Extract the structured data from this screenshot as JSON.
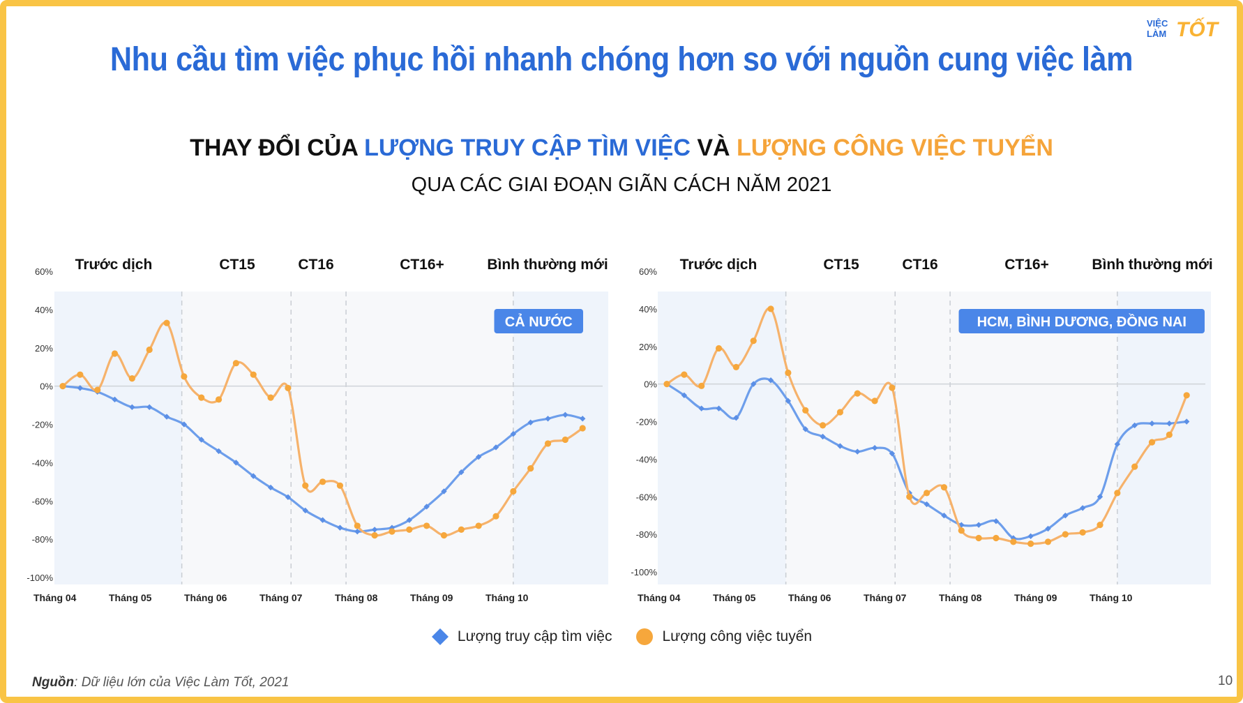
{
  "page_title": "Nhu cầu tìm việc phục hồi nhanh chóng hơn so với nguồn cung việc làm",
  "logo": {
    "top": "VIỆC",
    "bottom": "LÀM",
    "brand": "TỐT"
  },
  "chart_heading": {
    "part1": "THAY ĐỔI CỦA ",
    "part2": "LƯỢNG TRUY CẬP TÌM VIỆC",
    "part3": " VÀ ",
    "part4": "LƯỢNG CÔNG VIỆC TUYỂN",
    "subtitle": "QUA CÁC GIAI ĐOẠN GIÃN CÁCH NĂM 2021"
  },
  "legend": {
    "series1": "Lượng truy cập tìm việc",
    "series2": "Lượng công việc tuyển"
  },
  "source": {
    "label": "Nguồn",
    "text": ": Dữ liệu lớn của Việc Làm Tốt, 2021"
  },
  "page_number": "10",
  "colors": {
    "blue": "#6d9eeb",
    "orange": "#f6b26b",
    "accent_blue": "#2a6ad6",
    "border": "#f9c445"
  },
  "chart_data": [
    {
      "type": "line",
      "badge": "CẢ NƯỚC",
      "phases": [
        "Trước dịch",
        "CT15",
        "CT16",
        "CT16+",
        "Bình thường mới"
      ],
      "x_ticks": [
        "Tháng 04",
        "Tháng 05",
        "Tháng 06",
        "Tháng 07",
        "Tháng 08",
        "Tháng 09",
        "Tháng 10"
      ],
      "y_ticks": [
        "60%",
        "40%",
        "20%",
        "0%",
        "-20%",
        "-40%",
        "-60%",
        "-80%",
        "-100%"
      ],
      "ylim": [
        -100,
        60
      ],
      "phase_boundaries": [
        1.58,
        3.03,
        3.76,
        5.98
      ],
      "series": [
        {
          "name": "Lượng truy cập tìm việc",
          "marker": "diamond",
          "x": [
            0,
            0.23,
            0.46,
            0.69,
            0.92,
            1.15,
            1.38,
            1.61,
            1.84,
            2.07,
            2.3,
            2.53,
            2.76,
            2.99,
            3.22,
            3.45,
            3.68,
            3.91,
            4.14,
            4.37,
            4.6,
            4.83,
            5.06,
            5.29,
            5.52,
            5.75,
            5.98,
            6.21,
            6.44,
            6.67,
            6.9
          ],
          "values": [
            0,
            -1,
            -3,
            -7,
            -11,
            -11,
            -16,
            -20,
            -28,
            -34,
            -40,
            -47,
            -53,
            -58,
            -65,
            -70,
            -74,
            -76,
            -75,
            -74,
            -70,
            -63,
            -55,
            -45,
            -37,
            -32,
            -25,
            -19,
            -17,
            -15,
            -17
          ]
        },
        {
          "name": "Lượng công việc tuyển",
          "marker": "circle",
          "x": [
            0,
            0.23,
            0.46,
            0.69,
            0.92,
            1.15,
            1.38,
            1.61,
            1.84,
            2.07,
            2.3,
            2.53,
            2.76,
            2.99,
            3.22,
            3.45,
            3.68,
            3.91,
            4.14,
            4.37,
            4.6,
            4.83,
            5.06,
            5.29,
            5.52,
            5.75,
            5.98,
            6.21,
            6.44,
            6.67,
            6.9
          ],
          "values": [
            0,
            6,
            -2,
            17,
            4,
            19,
            33,
            5,
            -6,
            -7,
            12,
            6,
            -6,
            -1,
            -52,
            -50,
            -52,
            -73,
            -78,
            -76,
            -75,
            -73,
            -78,
            -75,
            -73,
            -68,
            -55,
            -43,
            -30,
            -28,
            -22
          ]
        }
      ]
    },
    {
      "type": "line",
      "badge": "HCM, BÌNH DƯƠNG, ĐỒNG NAI",
      "phases": [
        "Trước dịch",
        "CT15",
        "CT16",
        "CT16+",
        "Bình thường mới"
      ],
      "x_ticks": [
        "Tháng 04",
        "Tháng 05",
        "Tháng 06",
        "Tháng 07",
        "Tháng 08",
        "Tháng 09",
        "Tháng 10"
      ],
      "y_ticks": [
        "60%",
        "40%",
        "20%",
        "0%",
        "-20%",
        "-40%",
        "-60%",
        "-80%",
        "-100%"
      ],
      "ylim": [
        -100,
        60
      ],
      "phase_boundaries": [
        1.58,
        3.03,
        3.76,
        5.98
      ],
      "series": [
        {
          "name": "Lượng truy cập tìm việc",
          "marker": "diamond",
          "x": [
            0,
            0.23,
            0.46,
            0.69,
            0.92,
            1.15,
            1.38,
            1.61,
            1.84,
            2.07,
            2.3,
            2.53,
            2.76,
            2.99,
            3.22,
            3.45,
            3.68,
            3.91,
            4.14,
            4.37,
            4.6,
            4.83,
            5.06,
            5.29,
            5.52,
            5.75,
            5.98,
            6.21,
            6.44,
            6.67,
            6.9
          ],
          "values": [
            0,
            -6,
            -13,
            -13,
            -18,
            0,
            2,
            -9,
            -24,
            -28,
            -33,
            -36,
            -34,
            -37,
            -58,
            -64,
            -70,
            -75,
            -75,
            -73,
            -82,
            -81,
            -77,
            -70,
            -66,
            -60,
            -32,
            -22,
            -21,
            -21,
            -20
          ]
        },
        {
          "name": "Lượng công việc tuyển",
          "marker": "circle",
          "x": [
            0,
            0.23,
            0.46,
            0.69,
            0.92,
            1.15,
            1.38,
            1.61,
            1.84,
            2.07,
            2.3,
            2.53,
            2.76,
            2.99,
            3.22,
            3.45,
            3.68,
            3.91,
            4.14,
            4.37,
            4.6,
            4.83,
            5.06,
            5.29,
            5.52,
            5.75,
            5.98,
            6.21,
            6.44,
            6.67,
            6.9
          ],
          "values": [
            0,
            5,
            -1,
            19,
            9,
            23,
            40,
            6,
            -14,
            -22,
            -15,
            -5,
            -9,
            -2,
            -60,
            -58,
            -55,
            -78,
            -82,
            -82,
            -84,
            -85,
            -84,
            -80,
            -79,
            -75,
            -58,
            -44,
            -31,
            -27,
            -6
          ]
        }
      ]
    }
  ]
}
